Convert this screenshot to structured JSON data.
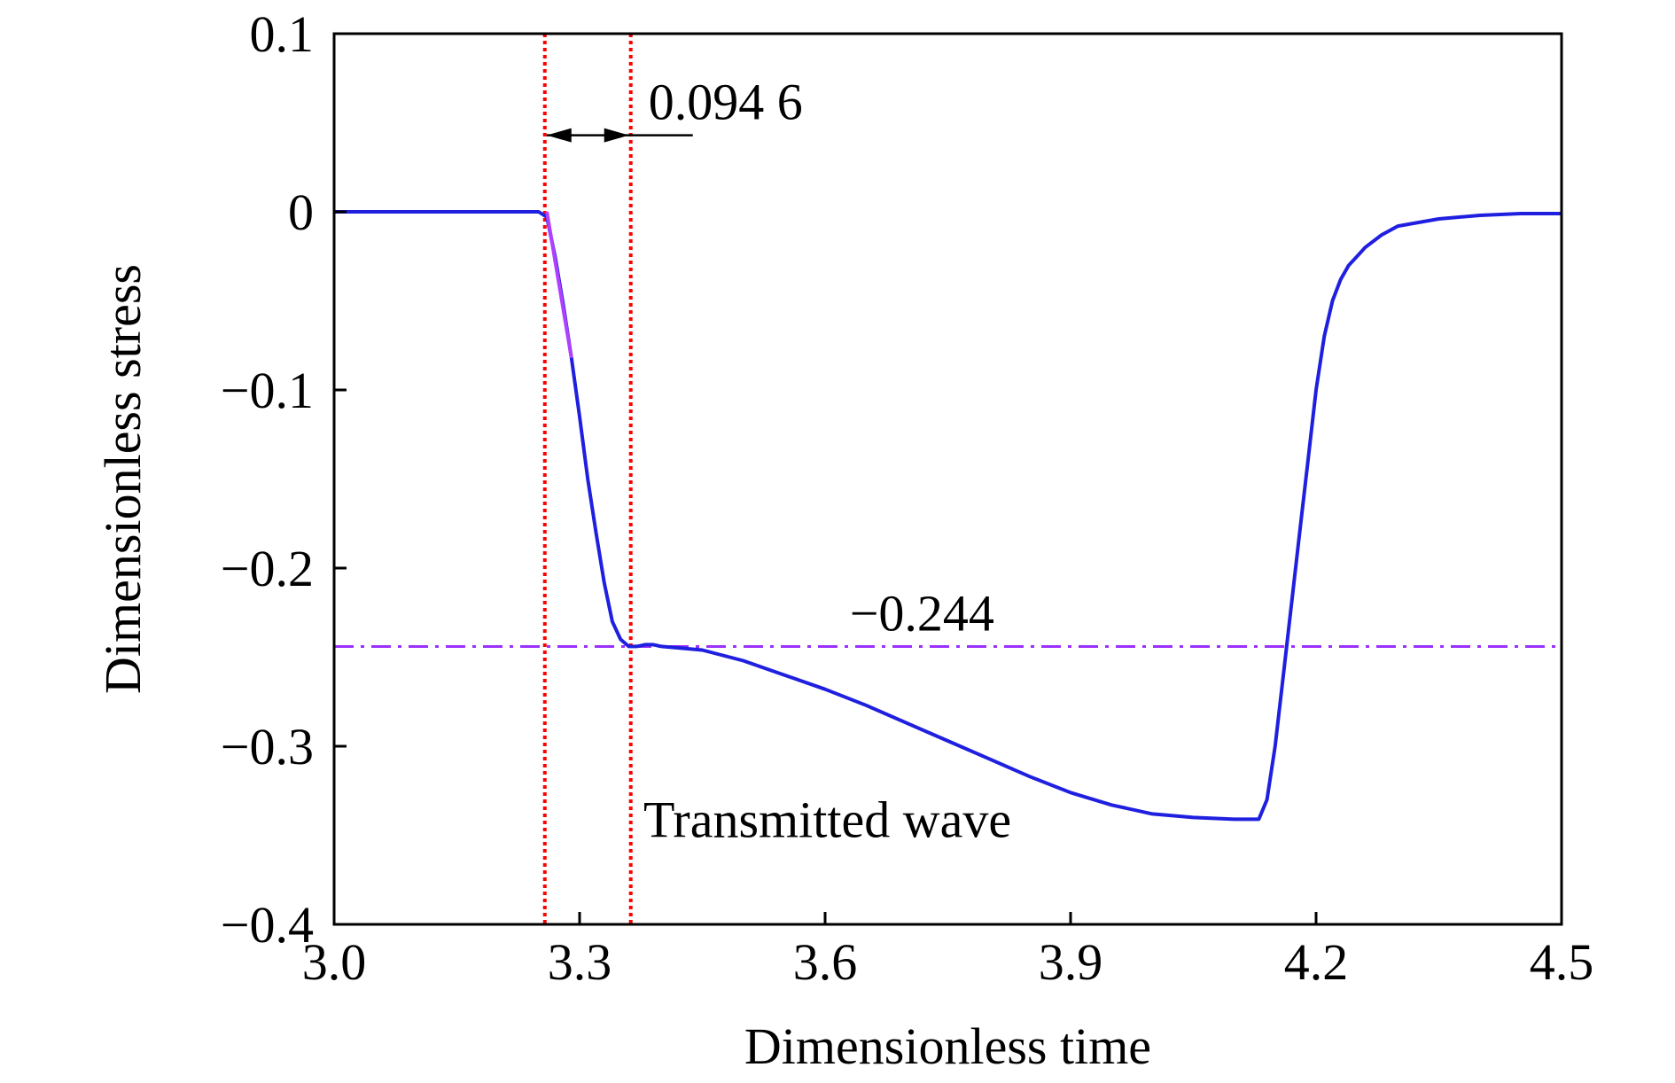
{
  "chart_data": {
    "type": "line",
    "xlabel": "Dimensionless time",
    "ylabel": "Dimensionless stress",
    "xlim": [
      3.0,
      4.5
    ],
    "ylim": [
      -0.4,
      0.1
    ],
    "xticks": [
      3.0,
      3.3,
      3.6,
      3.9,
      4.2,
      4.5
    ],
    "xtick_labels": [
      "3.0",
      "3.3",
      "3.6",
      "3.9",
      "4.2",
      "4.5"
    ],
    "yticks": [
      0.1,
      0,
      -0.1,
      -0.2,
      -0.3,
      -0.4
    ],
    "ytick_labels": [
      "0.1",
      "0",
      "−0.1",
      "−0.2",
      "−0.3",
      "−0.4"
    ],
    "grid": false,
    "series": [
      {
        "color": "#1f1fe0",
        "x": [
          3.0,
          3.1,
          3.2,
          3.25,
          3.26,
          3.27,
          3.28,
          3.29,
          3.3,
          3.31,
          3.32,
          3.33,
          3.34,
          3.35,
          3.36,
          3.37,
          3.38,
          3.39,
          3.4,
          3.45,
          3.5,
          3.55,
          3.6,
          3.65,
          3.7,
          3.75,
          3.8,
          3.85,
          3.9,
          3.95,
          4.0,
          4.05,
          4.1,
          4.13,
          4.14,
          4.15,
          4.16,
          4.17,
          4.18,
          4.19,
          4.2,
          4.21,
          4.22,
          4.23,
          4.24,
          4.25,
          4.26,
          4.28,
          4.3,
          4.35,
          4.4,
          4.45,
          4.5
        ],
        "y": [
          0,
          0,
          0,
          0,
          -0.003,
          -0.025,
          -0.052,
          -0.082,
          -0.115,
          -0.15,
          -0.18,
          -0.208,
          -0.23,
          -0.24,
          -0.244,
          -0.244,
          -0.243,
          -0.243,
          -0.244,
          -0.246,
          -0.252,
          -0.26,
          -0.268,
          -0.277,
          -0.287,
          -0.297,
          -0.307,
          -0.317,
          -0.326,
          -0.333,
          -0.338,
          -0.34,
          -0.341,
          -0.341,
          -0.33,
          -0.3,
          -0.26,
          -0.22,
          -0.18,
          -0.14,
          -0.1,
          -0.07,
          -0.05,
          -0.038,
          -0.03,
          -0.025,
          -0.02,
          -0.013,
          -0.008,
          -0.004,
          -0.002,
          -0.001,
          -0.001
        ]
      }
    ],
    "reference_lines": {
      "horizontal": {
        "y": -0.244,
        "color": "#9b30ff",
        "style": "dash-dot"
      },
      "vertical": [
        {
          "x": 3.2575,
          "color": "#ff0000",
          "style": "dotted"
        },
        {
          "x": 3.3625,
          "color": "#ff0000",
          "style": "dotted"
        }
      ],
      "highlight_segment": {
        "x": [
          3.26,
          3.29
        ],
        "y": [
          0,
          -0.082
        ],
        "color": "#b040ff"
      }
    },
    "annotations": {
      "interval_label": "0.094 6",
      "interval_x": [
        3.2575,
        3.3625
      ],
      "interval_y": 0.043,
      "level_label": "−0.244",
      "curve_label": "Transmitted wave"
    }
  }
}
